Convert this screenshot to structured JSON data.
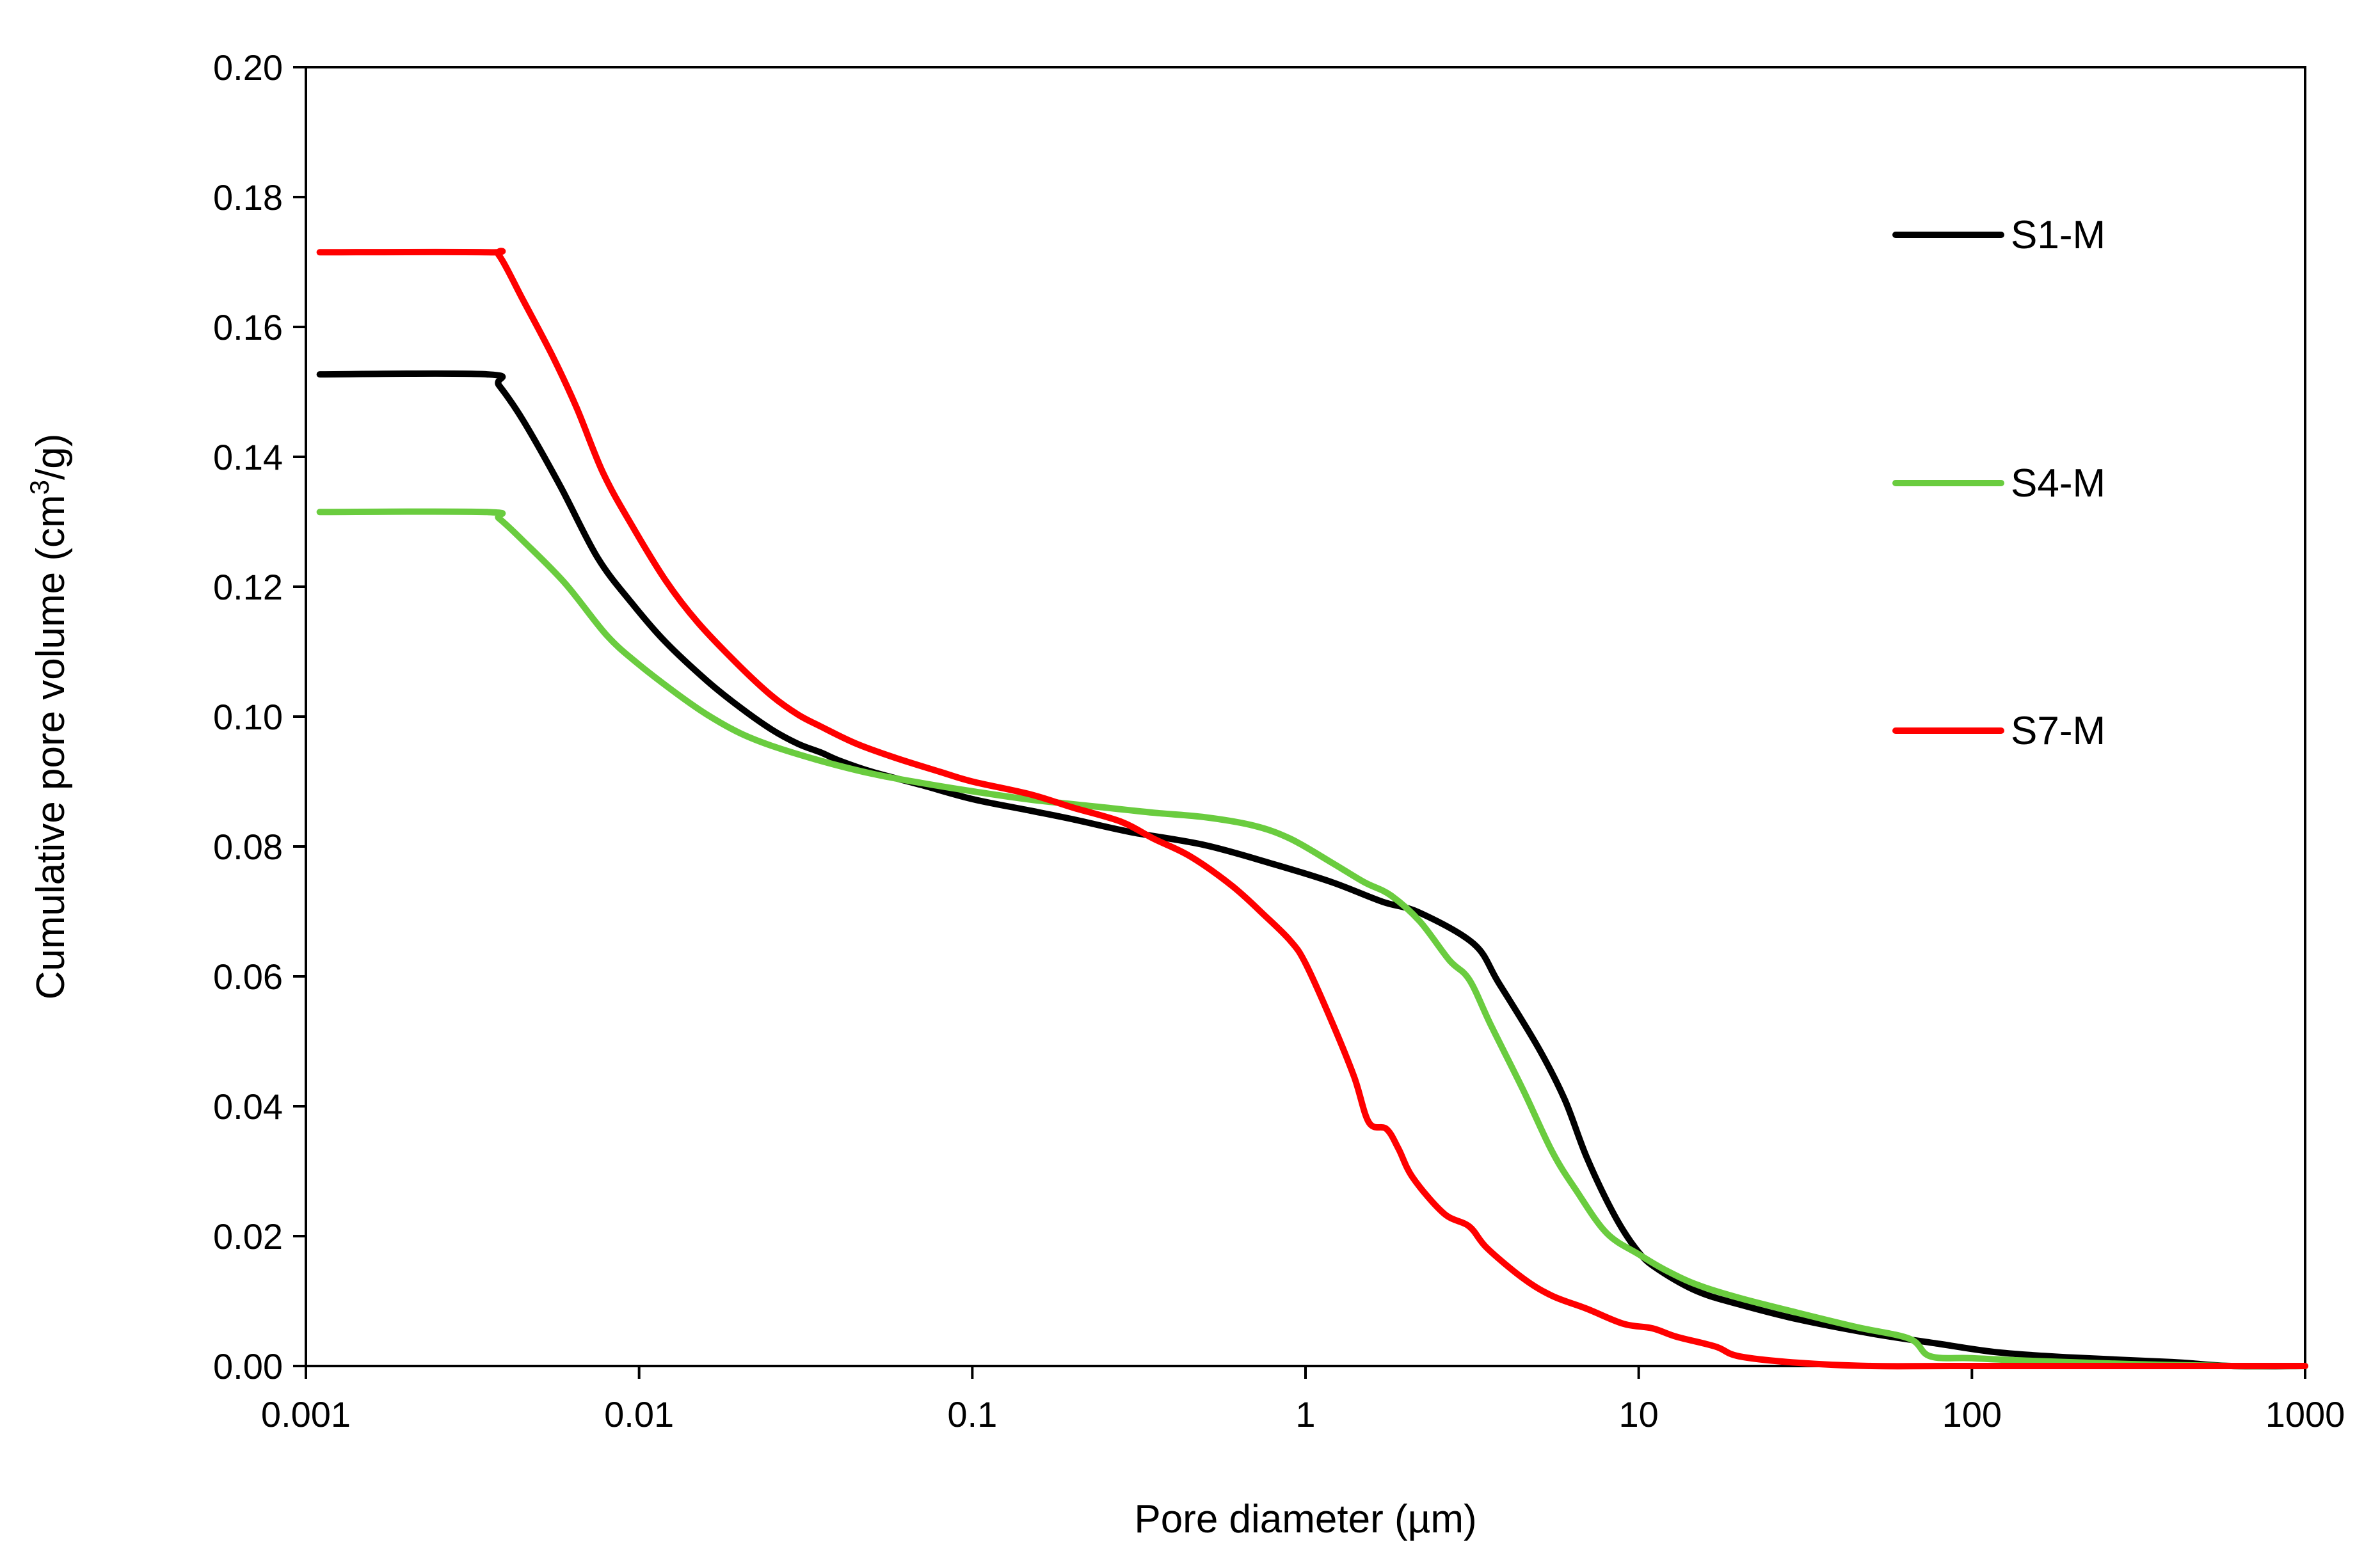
{
  "chart_data": {
    "type": "line",
    "title": "",
    "xlabel": "Pore diameter (µm)",
    "ylabel_parts": [
      "Cumulative pore volume (cm",
      "3",
      "/g)"
    ],
    "x_scale": "log",
    "xlim": [
      0.001,
      1000
    ],
    "ylim": [
      0,
      0.2
    ],
    "x_ticks": [
      0.001,
      0.01,
      0.1,
      1,
      10,
      100,
      1000
    ],
    "x_tick_labels": [
      "0.001",
      "0.01",
      "0.1",
      "1",
      "10",
      "100",
      "1000"
    ],
    "y_ticks": [
      0,
      0.02,
      0.04,
      0.06,
      0.08,
      0.1,
      0.12,
      0.14,
      0.16,
      0.18,
      0.2
    ],
    "y_tick_labels": [
      "0.00",
      "0.02",
      "0.04",
      "0.06",
      "0.08",
      "0.10",
      "0.12",
      "0.14",
      "0.16",
      "0.18",
      "0.20"
    ],
    "grid": false,
    "legend_position": "right",
    "series": [
      {
        "name": "S1-M",
        "color": "#000000",
        "points": [
          [
            0.0011,
            0.1527
          ],
          [
            0.0035,
            0.1527
          ],
          [
            0.0038,
            0.151
          ],
          [
            0.0045,
            0.1455
          ],
          [
            0.0058,
            0.1355
          ],
          [
            0.0075,
            0.1245
          ],
          [
            0.0095,
            0.1175
          ],
          [
            0.012,
            0.1115
          ],
          [
            0.016,
            0.1055
          ],
          [
            0.02,
            0.1015
          ],
          [
            0.025,
            0.098
          ],
          [
            0.03,
            0.0958
          ],
          [
            0.035,
            0.0945
          ],
          [
            0.04,
            0.0932
          ],
          [
            0.05,
            0.0915
          ],
          [
            0.07,
            0.0895
          ],
          [
            0.1,
            0.0873
          ],
          [
            0.15,
            0.0855
          ],
          [
            0.2,
            0.0842
          ],
          [
            0.3,
            0.0822
          ],
          [
            0.5,
            0.0802
          ],
          [
            0.8,
            0.0773
          ],
          [
            1.2,
            0.0745
          ],
          [
            1.7,
            0.0715
          ],
          [
            2.2,
            0.0698
          ],
          [
            3.2,
            0.065
          ],
          [
            3.8,
            0.059
          ],
          [
            5.0,
            0.049
          ],
          [
            6.0,
            0.041
          ],
          [
            7.0,
            0.032
          ],
          [
            8.5,
            0.023
          ],
          [
            10,
            0.0175
          ],
          [
            11.5,
            0.0148
          ],
          [
            15,
            0.0115
          ],
          [
            20,
            0.0095
          ],
          [
            30,
            0.0072
          ],
          [
            50,
            0.005
          ],
          [
            80,
            0.0034
          ],
          [
            120,
            0.0021
          ],
          [
            200,
            0.0013
          ],
          [
            400,
            0.0006
          ],
          [
            600,
            0.0
          ],
          [
            1000,
            0.0
          ]
        ]
      },
      {
        "name": "S4-M",
        "color": "#6acc3f",
        "points": [
          [
            0.0011,
            0.1315
          ],
          [
            0.0035,
            0.1315
          ],
          [
            0.0038,
            0.1305
          ],
          [
            0.0045,
            0.127
          ],
          [
            0.006,
            0.1205
          ],
          [
            0.008,
            0.1125
          ],
          [
            0.01,
            0.108
          ],
          [
            0.013,
            0.1035
          ],
          [
            0.016,
            0.1003
          ],
          [
            0.02,
            0.0975
          ],
          [
            0.025,
            0.0955
          ],
          [
            0.035,
            0.0932
          ],
          [
            0.05,
            0.0912
          ],
          [
            0.07,
            0.0898
          ],
          [
            0.1,
            0.0885
          ],
          [
            0.15,
            0.0872
          ],
          [
            0.25,
            0.086
          ],
          [
            0.35,
            0.0852
          ],
          [
            0.5,
            0.0845
          ],
          [
            0.7,
            0.0832
          ],
          [
            0.9,
            0.0812
          ],
          [
            1.2,
            0.0775
          ],
          [
            1.5,
            0.0745
          ],
          [
            1.8,
            0.0725
          ],
          [
            2.2,
            0.0685
          ],
          [
            2.7,
            0.0625
          ],
          [
            3.1,
            0.0595
          ],
          [
            3.6,
            0.0525
          ],
          [
            4.5,
            0.0425
          ],
          [
            5.5,
            0.033
          ],
          [
            6.5,
            0.027
          ],
          [
            8.0,
            0.0205
          ],
          [
            10,
            0.0172
          ],
          [
            12,
            0.0148
          ],
          [
            15,
            0.0125
          ],
          [
            20,
            0.0105
          ],
          [
            30,
            0.0082
          ],
          [
            45,
            0.006
          ],
          [
            65,
            0.0042
          ],
          [
            75,
            0.0015
          ],
          [
            100,
            0.0012
          ],
          [
            150,
            0.0008
          ],
          [
            300,
            0.0003
          ],
          [
            600,
            0.0
          ],
          [
            1000,
            0.0
          ]
        ]
      },
      {
        "name": "S7-M",
        "color": "#ff0000",
        "points": [
          [
            0.0011,
            0.1715
          ],
          [
            0.0035,
            0.1715
          ],
          [
            0.0038,
            0.171
          ],
          [
            0.0045,
            0.164
          ],
          [
            0.0055,
            0.1555
          ],
          [
            0.0065,
            0.1475
          ],
          [
            0.0078,
            0.1375
          ],
          [
            0.0095,
            0.1295
          ],
          [
            0.012,
            0.121
          ],
          [
            0.015,
            0.1145
          ],
          [
            0.02,
            0.1078
          ],
          [
            0.025,
            0.1032
          ],
          [
            0.03,
            0.1003
          ],
          [
            0.035,
            0.0985
          ],
          [
            0.045,
            0.0958
          ],
          [
            0.06,
            0.0935
          ],
          [
            0.08,
            0.0915
          ],
          [
            0.1,
            0.09
          ],
          [
            0.15,
            0.088
          ],
          [
            0.2,
            0.086
          ],
          [
            0.28,
            0.0838
          ],
          [
            0.35,
            0.0812
          ],
          [
            0.45,
            0.0785
          ],
          [
            0.6,
            0.074
          ],
          [
            0.75,
            0.0695
          ],
          [
            0.9,
            0.0655
          ],
          [
            1.0,
            0.062
          ],
          [
            1.2,
            0.053
          ],
          [
            1.4,
            0.0445
          ],
          [
            1.55,
            0.0375
          ],
          [
            1.75,
            0.0365
          ],
          [
            1.9,
            0.0335
          ],
          [
            2.1,
            0.029
          ],
          [
            2.6,
            0.0235
          ],
          [
            3.1,
            0.0215
          ],
          [
            3.5,
            0.0182
          ],
          [
            4.5,
            0.0135
          ],
          [
            5.5,
            0.0108
          ],
          [
            7.0,
            0.0088
          ],
          [
            9.0,
            0.0065
          ],
          [
            11,
            0.0058
          ],
          [
            13,
            0.0045
          ],
          [
            17,
            0.003
          ],
          [
            20,
            0.0015
          ],
          [
            30,
            0.0005
          ],
          [
            50,
            0.0
          ],
          [
            100,
            0.0
          ],
          [
            1000,
            0.0
          ]
        ]
      }
    ]
  }
}
